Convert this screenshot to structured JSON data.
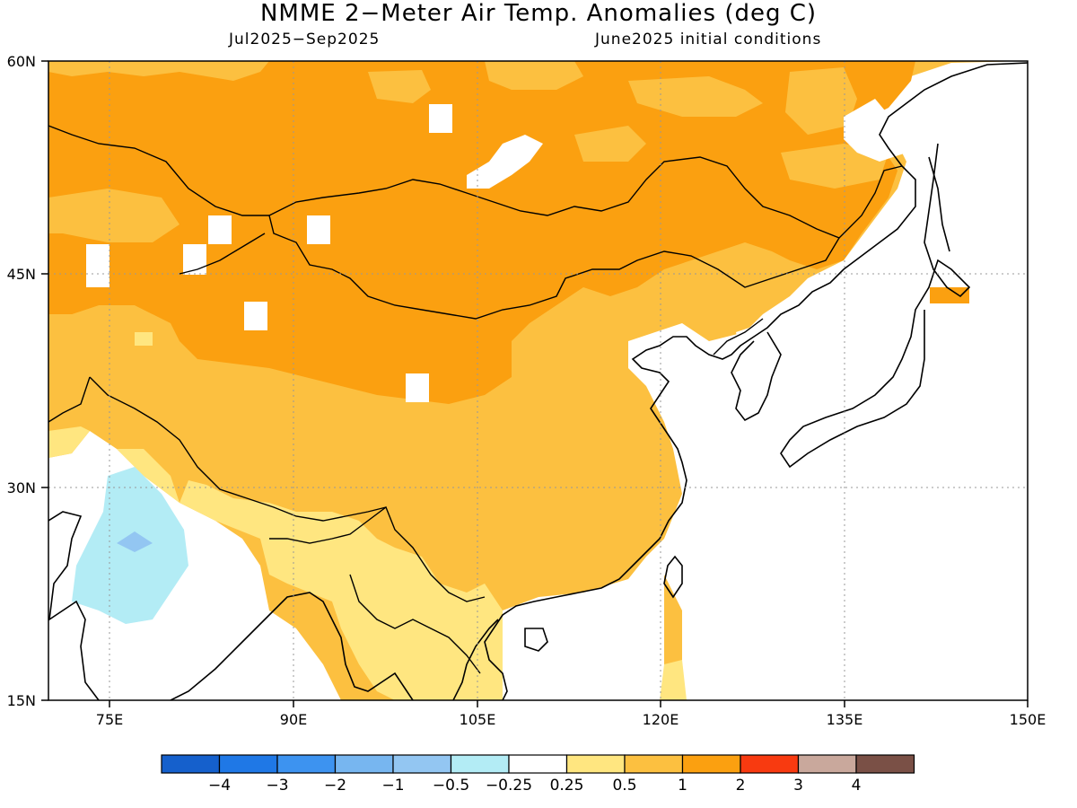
{
  "title": "NMME 2−Meter Air Temp. Anomalies (deg C)",
  "subtitle_left": "Jul2025−Sep2025",
  "subtitle_right": "June2025 initial conditions",
  "lat_labels": [
    "60N",
    "45N",
    "30N",
    "15N"
  ],
  "lon_labels": [
    "75E",
    "90E",
    "105E",
    "120E",
    "135E",
    "150E"
  ],
  "colorbar": {
    "labels": [
      "−4",
      "−3",
      "−2",
      "−1",
      "−0.5",
      "−0.25",
      "0.25",
      "0.5",
      "1",
      "2",
      "3",
      "4"
    ],
    "colors": [
      "#1560cc",
      "#1f78e6",
      "#3d93f0",
      "#77b6f0",
      "#93c6f2",
      "#b3ecf5",
      "#ffffff",
      "#ffe680",
      "#fcc040",
      "#fba010",
      "#f83a10",
      "#c9a89c",
      "#7a5046"
    ]
  },
  "map_colors": {
    "anom_1_2": "#fba010",
    "anom_05_1": "#fcc040",
    "anom_025_05": "#ffe680",
    "anom_neg_025_05": "#b3ecf5",
    "anom_neg_05_1": "#93c6f2",
    "no_anom": "#ffffff"
  }
}
